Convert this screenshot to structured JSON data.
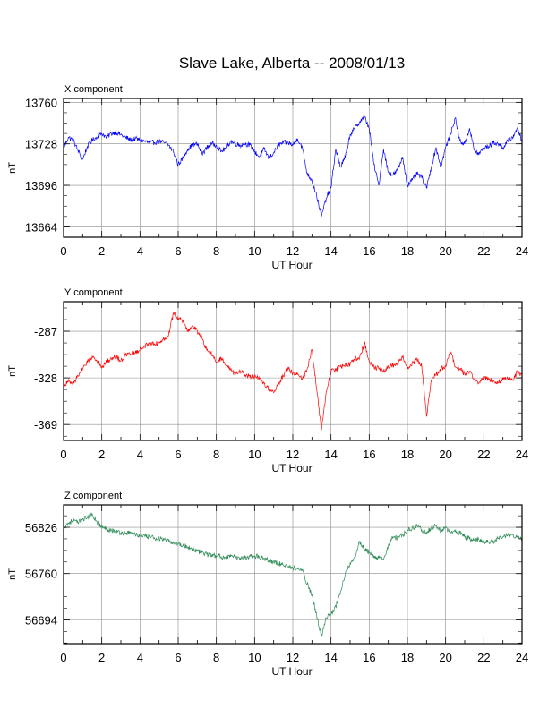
{
  "page_title": "Slave Lake, Alberta -- 2008/01/13",
  "chart_data": [
    {
      "type": "line",
      "title": "X component",
      "xlabel": "UT Hour",
      "ylabel": "nT",
      "xlim": [
        0,
        24
      ],
      "ylim": [
        13656,
        13763
      ],
      "xticks": [
        0,
        2,
        4,
        6,
        8,
        10,
        12,
        14,
        16,
        18,
        20,
        22,
        24
      ],
      "yticks": [
        13664,
        13696,
        13728,
        13760
      ],
      "grid": true,
      "color": "#0000ff",
      "series": [
        {
          "x": [
            0,
            0.25,
            0.5,
            0.75,
            1,
            1.25,
            1.5,
            1.75,
            2,
            2.25,
            2.5,
            2.75,
            3,
            3.25,
            3.5,
            3.75,
            4,
            4.25,
            4.5,
            4.75,
            5,
            5.25,
            5.5,
            5.75,
            6,
            6.25,
            6.5,
            6.75,
            7,
            7.25,
            7.5,
            7.75,
            8,
            8.25,
            8.5,
            8.75,
            9,
            9.25,
            9.5,
            9.75,
            10,
            10.25,
            10.5,
            10.75,
            11,
            11.25,
            11.5,
            11.75,
            12,
            12.25,
            12.5,
            12.75,
            13,
            13.25,
            13.5,
            13.75,
            14,
            14.25,
            14.5,
            14.75,
            15,
            15.25,
            15.5,
            15.75,
            16,
            16.25,
            16.5,
            16.75,
            17,
            17.25,
            17.5,
            17.75,
            18,
            18.25,
            18.5,
            18.75,
            19,
            19.25,
            19.5,
            19.75,
            20,
            20.25,
            20.5,
            20.75,
            21,
            21.25,
            21.5,
            21.75,
            22,
            22.25,
            22.5,
            22.75,
            23,
            23.25,
            23.5,
            23.75,
            24
          ],
          "y": [
            13725,
            13733,
            13731,
            13723,
            13716,
            13726,
            13731,
            13733,
            13736,
            13733,
            13736,
            13737,
            13735,
            13733,
            13731,
            13732,
            13731,
            13730,
            13729,
            13729,
            13730,
            13729,
            13727,
            13722,
            13712,
            13717,
            13724,
            13727,
            13728,
            13720,
            13725,
            13728,
            13727,
            13722,
            13725,
            13730,
            13728,
            13727,
            13728,
            13727,
            13722,
            13718,
            13724,
            13717,
            13721,
            13727,
            13729,
            13729,
            13727,
            13732,
            13725,
            13705,
            13700,
            13688,
            13672,
            13686,
            13694,
            13724,
            13710,
            13718,
            13735,
            13740,
            13745,
            13749,
            13740,
            13712,
            13696,
            13724,
            13706,
            13704,
            13708,
            13718,
            13696,
            13700,
            13705,
            13702,
            13694,
            13710,
            13725,
            13710,
            13725,
            13735,
            13748,
            13730,
            13728,
            13740,
            13723,
            13720,
            13725,
            13726,
            13729,
            13728,
            13725,
            13730,
            13733,
            13740,
            13730
          ]
        }
      ]
    },
    {
      "type": "line",
      "title": "Y component",
      "xlabel": "UT Hour",
      "ylabel": "nT",
      "xlim": [
        0,
        24
      ],
      "ylim": [
        -383,
        -261
      ],
      "xticks": [
        0,
        2,
        4,
        6,
        8,
        10,
        12,
        14,
        16,
        18,
        20,
        22,
        24
      ],
      "yticks": [
        -287,
        -328,
        -369
      ],
      "grid": true,
      "color": "#ff0000",
      "series": [
        {
          "x": [
            0,
            0.25,
            0.5,
            0.75,
            1,
            1.25,
            1.5,
            1.75,
            2,
            2.25,
            2.5,
            2.75,
            3,
            3.25,
            3.5,
            3.75,
            4,
            4.25,
            4.5,
            4.75,
            5,
            5.25,
            5.5,
            5.75,
            6,
            6.25,
            6.5,
            6.75,
            7,
            7.25,
            7.5,
            7.75,
            8,
            8.25,
            8.5,
            8.75,
            9,
            9.25,
            9.5,
            9.75,
            10,
            10.25,
            10.5,
            10.75,
            11,
            11.25,
            11.5,
            11.75,
            12,
            12.25,
            12.5,
            12.75,
            13,
            13.25,
            13.5,
            13.75,
            14,
            14.25,
            14.5,
            14.75,
            15,
            15.25,
            15.5,
            15.75,
            16,
            16.25,
            16.5,
            16.75,
            17,
            17.25,
            17.5,
            17.75,
            18,
            18.25,
            18.5,
            18.75,
            19,
            19.25,
            19.5,
            19.75,
            20,
            20.25,
            20.5,
            20.75,
            21,
            21.25,
            21.5,
            21.75,
            22,
            22.25,
            22.5,
            22.75,
            23,
            23.25,
            23.5,
            23.75,
            24
          ],
          "y": [
            -335,
            -331,
            -333,
            -326,
            -320,
            -314,
            -309,
            -313,
            -318,
            -314,
            -311,
            -309,
            -313,
            -308,
            -307,
            -306,
            -303,
            -300,
            -298,
            -298,
            -297,
            -294,
            -290,
            -271,
            -276,
            -278,
            -287,
            -282,
            -287,
            -293,
            -304,
            -307,
            -314,
            -311,
            -317,
            -321,
            -325,
            -322,
            -325,
            -327,
            -327,
            -329,
            -333,
            -338,
            -341,
            -333,
            -326,
            -319,
            -324,
            -324,
            -329,
            -320,
            -303,
            -338,
            -374,
            -340,
            -322,
            -321,
            -318,
            -316,
            -316,
            -311,
            -310,
            -297,
            -313,
            -318,
            -320,
            -322,
            -318,
            -317,
            -315,
            -310,
            -320,
            -315,
            -312,
            -318,
            -362,
            -330,
            -325,
            -320,
            -318,
            -305,
            -318,
            -320,
            -325,
            -322,
            -329,
            -332,
            -328,
            -329,
            -330,
            -332,
            -329,
            -328,
            -330,
            -323,
            -326
          ]
        }
      ]
    },
    {
      "type": "line",
      "title": "Z component",
      "xlabel": "UT Hour",
      "ylabel": "nT",
      "xlim": [
        0,
        24
      ],
      "ylim": [
        56660,
        56858
      ],
      "xticks": [
        0,
        2,
        4,
        6,
        8,
        10,
        12,
        14,
        16,
        18,
        20,
        22,
        24
      ],
      "yticks": [
        56826,
        56760,
        56694
      ],
      "grid": true,
      "color": "#2e8b57",
      "series": [
        {
          "x": [
            0,
            0.25,
            0.5,
            0.75,
            1,
            1.25,
            1.5,
            1.75,
            2,
            2.25,
            2.5,
            2.75,
            3,
            3.25,
            3.5,
            3.75,
            4,
            4.25,
            4.5,
            4.75,
            5,
            5.25,
            5.5,
            5.75,
            6,
            6.25,
            6.5,
            6.75,
            7,
            7.25,
            7.5,
            7.75,
            8,
            8.25,
            8.5,
            8.75,
            9,
            9.25,
            9.5,
            9.75,
            10,
            10.25,
            10.5,
            10.75,
            11,
            11.25,
            11.5,
            11.75,
            12,
            12.25,
            12.5,
            12.75,
            13,
            13.25,
            13.5,
            13.75,
            14,
            14.25,
            14.5,
            14.75,
            15,
            15.25,
            15.5,
            15.75,
            16,
            16.25,
            16.5,
            16.75,
            17,
            17.25,
            17.5,
            17.75,
            18,
            18.25,
            18.5,
            18.75,
            19,
            19.25,
            19.5,
            19.75,
            20,
            20.25,
            20.5,
            20.75,
            21,
            21.25,
            21.5,
            21.75,
            22,
            22.25,
            22.5,
            22.75,
            23,
            23.25,
            23.5,
            23.75,
            24
          ],
          "y": [
            56826,
            56832,
            56836,
            56832,
            56838,
            56840,
            56845,
            56834,
            56826,
            56824,
            56822,
            56820,
            56818,
            56818,
            56818,
            56816,
            56814,
            56813,
            56812,
            56811,
            56810,
            56808,
            56806,
            56804,
            56803,
            56800,
            56798,
            56795,
            56792,
            56790,
            56788,
            56786,
            56785,
            56784,
            56784,
            56784,
            56783,
            56782,
            56783,
            56785,
            56785,
            56784,
            56782,
            56779,
            56776,
            56775,
            56772,
            56770,
            56768,
            56767,
            56764,
            56745,
            56730,
            56700,
            56670,
            56697,
            56702,
            56713,
            56735,
            56760,
            56775,
            56785,
            56805,
            56795,
            56790,
            56785,
            56782,
            56780,
            56800,
            56812,
            56810,
            56815,
            56822,
            56825,
            56828,
            56822,
            56819,
            56825,
            56829,
            56820,
            56825,
            56818,
            56820,
            56818,
            56812,
            56810,
            56808,
            56808,
            56806,
            56805,
            56806,
            56810,
            56812,
            56814,
            56815,
            56812,
            56810
          ]
        }
      ]
    }
  ]
}
